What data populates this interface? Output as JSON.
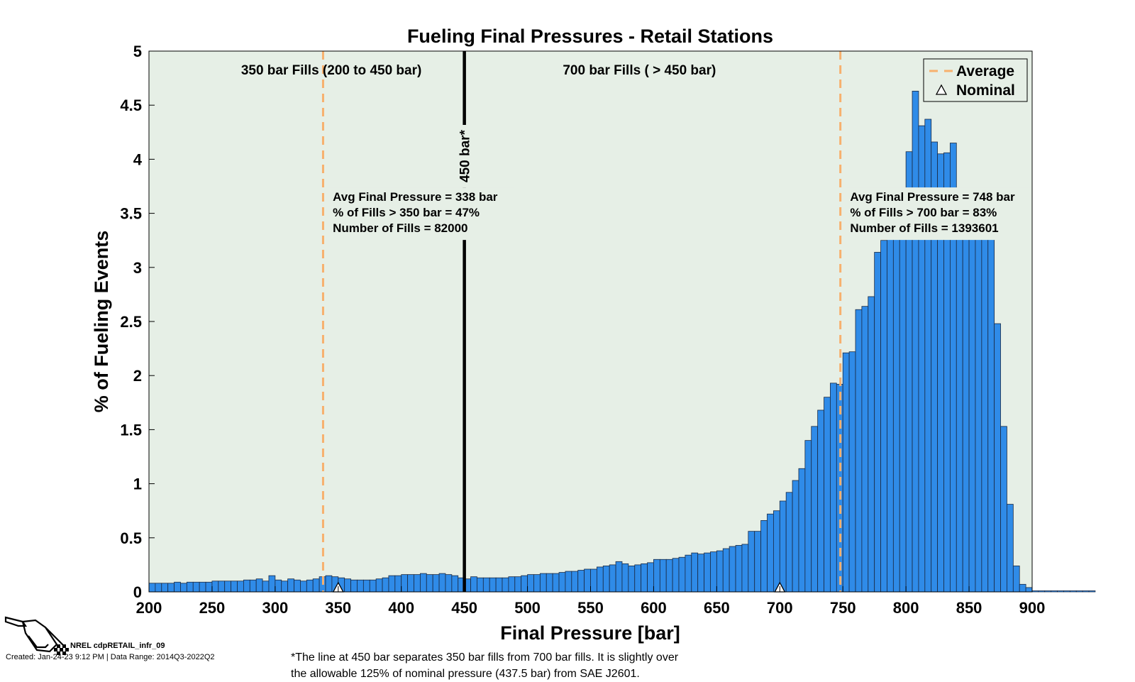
{
  "chart_data": {
    "type": "bar",
    "title": "Fueling Final Pressures - Retail Stations",
    "xlabel": "Final Pressure [bar]",
    "ylabel": "% of Fueling Events",
    "xlim": [
      200,
      900
    ],
    "ylim": [
      0,
      5
    ],
    "xticks": [
      200,
      250,
      300,
      350,
      400,
      450,
      500,
      550,
      600,
      650,
      700,
      750,
      800,
      850,
      900
    ],
    "yticks": [
      0,
      0.5,
      1,
      1.5,
      2,
      2.5,
      3,
      3.5,
      4,
      4.5,
      5
    ],
    "xtick_labels": [
      "200",
      "250",
      "300",
      "350",
      "400",
      "450",
      "500",
      "550",
      "600",
      "650",
      "700",
      "750",
      "800",
      "850",
      "900"
    ],
    "ytick_labels": [
      "0",
      "0.5",
      "1",
      "1.5",
      "2",
      "2.5",
      "3",
      "3.5",
      "4",
      "4.5",
      "5"
    ],
    "bin_start": 200,
    "bin_width": 5,
    "values": [
      0.08,
      0.08,
      0.08,
      0.08,
      0.09,
      0.08,
      0.09,
      0.09,
      0.09,
      0.09,
      0.1,
      0.1,
      0.1,
      0.1,
      0.1,
      0.11,
      0.11,
      0.12,
      0.1,
      0.15,
      0.11,
      0.1,
      0.12,
      0.11,
      0.1,
      0.11,
      0.12,
      0.14,
      0.15,
      0.14,
      0.13,
      0.12,
      0.11,
      0.11,
      0.11,
      0.11,
      0.12,
      0.13,
      0.15,
      0.15,
      0.16,
      0.16,
      0.16,
      0.17,
      0.16,
      0.16,
      0.17,
      0.16,
      0.15,
      0.13,
      0.12,
      0.14,
      0.13,
      0.13,
      0.13,
      0.13,
      0.13,
      0.14,
      0.14,
      0.15,
      0.16,
      0.16,
      0.17,
      0.17,
      0.17,
      0.18,
      0.19,
      0.19,
      0.2,
      0.21,
      0.21,
      0.23,
      0.24,
      0.25,
      0.28,
      0.26,
      0.24,
      0.25,
      0.26,
      0.27,
      0.3,
      0.3,
      0.3,
      0.31,
      0.32,
      0.34,
      0.36,
      0.35,
      0.36,
      0.37,
      0.38,
      0.4,
      0.42,
      0.43,
      0.44,
      0.56,
      0.56,
      0.66,
      0.72,
      0.75,
      0.84,
      0.92,
      1.03,
      1.14,
      1.4,
      1.53,
      1.68,
      1.8,
      1.93,
      1.92,
      2.21,
      2.22,
      2.61,
      2.64,
      2.73,
      3.14,
      3.25,
      3.3,
      3.41,
      3.5,
      4.07,
      4.63,
      4.31,
      4.37,
      4.16,
      4.05,
      4.06,
      4.15,
      3.3,
      3.3,
      3.3,
      3.3,
      3.3,
      3.3,
      2.48,
      1.53,
      0.81,
      0.24,
      0.07,
      0.04,
      0.01,
      0.01,
      0.01,
      0.01,
      0.01,
      0.01,
      0.01,
      0.01,
      0.01,
      0.01
    ],
    "bar_color": "#2f8be8",
    "plot_background": "#e6efe6",
    "average_lines": [
      338,
      748
    ],
    "average_line_color": "#f7b06e",
    "divider_line": 450,
    "divider_label": "450 bar*",
    "nominal_markers": [
      350,
      700
    ],
    "region_labels": [
      {
        "text": "350 bar Fills (200 to 450 bar)",
        "x": 255,
        "y": 4.9
      },
      {
        "text": "700 bar Fills ( > 450 bar)",
        "x": 510,
        "y": 4.9
      }
    ],
    "annotations": [
      {
        "lines": [
          "Avg Final Pressure = 338 bar",
          "% of Fills > 350 bar = 47%",
          "Number of Fills = 82000"
        ],
        "x": 344,
        "y": 3.7
      },
      {
        "lines": [
          "Avg Final Pressure = 748 bar",
          "% of Fills > 700 bar = 83%",
          "Number of Fills = 1393601"
        ],
        "x": 754,
        "y": 3.7
      }
    ],
    "legend": {
      "position": "top-right",
      "entries": [
        {
          "label": "Average",
          "marker": "dashed-line"
        },
        {
          "label": "Nominal",
          "marker": "triangle"
        }
      ]
    },
    "grid": false
  },
  "footer": {
    "logo_id": "NREL cdpRETAIL_infr_09",
    "created": "Created: Jan-24-23  9:12 PM | Data Range: 2014Q3-2022Q2",
    "footnote_line1": "*The line at 450 bar separates 350 bar fills from 700 bar fills.  It is slightly over",
    "footnote_line2": "the allowable 125% of nominal pressure (437.5 bar) from SAE J2601."
  },
  "icons": {
    "logo": "fuel-nozzle-icon"
  }
}
